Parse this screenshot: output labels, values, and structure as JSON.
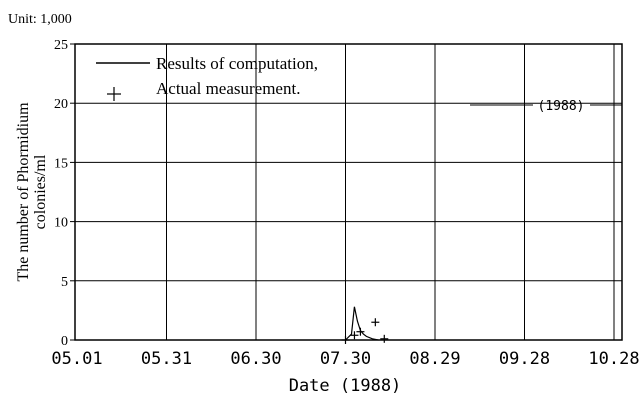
{
  "chart_data": {
    "type": "line",
    "unit_label": "Unit: 1,000",
    "ylabel_lines": [
      "The number of Phormidium",
      "colonies/ml"
    ],
    "xlabel": "Date (1988)",
    "x_ticks": [
      "05.01",
      "05.31",
      "06.30",
      "07.30",
      "08.29",
      "09.28",
      "10.28"
    ],
    "y_ticks": [
      "0",
      "5",
      "10",
      "15",
      "20",
      "25"
    ],
    "ylim": [
      0,
      25
    ],
    "grid": true,
    "legend_position": "top-left",
    "year_annotation": "(1988)",
    "series": [
      {
        "name": "Results of computation,",
        "style": "line",
        "color": "#000000",
        "x": [
          "07.30",
          "08.01",
          "08.02",
          "08.03",
          "08.04",
          "08.05",
          "08.06",
          "08.08",
          "08.10"
        ],
        "y": [
          0,
          0.5,
          2.8,
          1.6,
          0.8,
          0.5,
          0.3,
          0.1,
          0
        ]
      },
      {
        "name": "Actual measurement.",
        "style": "marker",
        "marker": "+",
        "color": "#000000",
        "x": [
          "07.30",
          "08.02",
          "08.04",
          "08.09",
          "08.12"
        ],
        "y": [
          0,
          0.4,
          0.7,
          1.5,
          0.1
        ]
      }
    ]
  }
}
